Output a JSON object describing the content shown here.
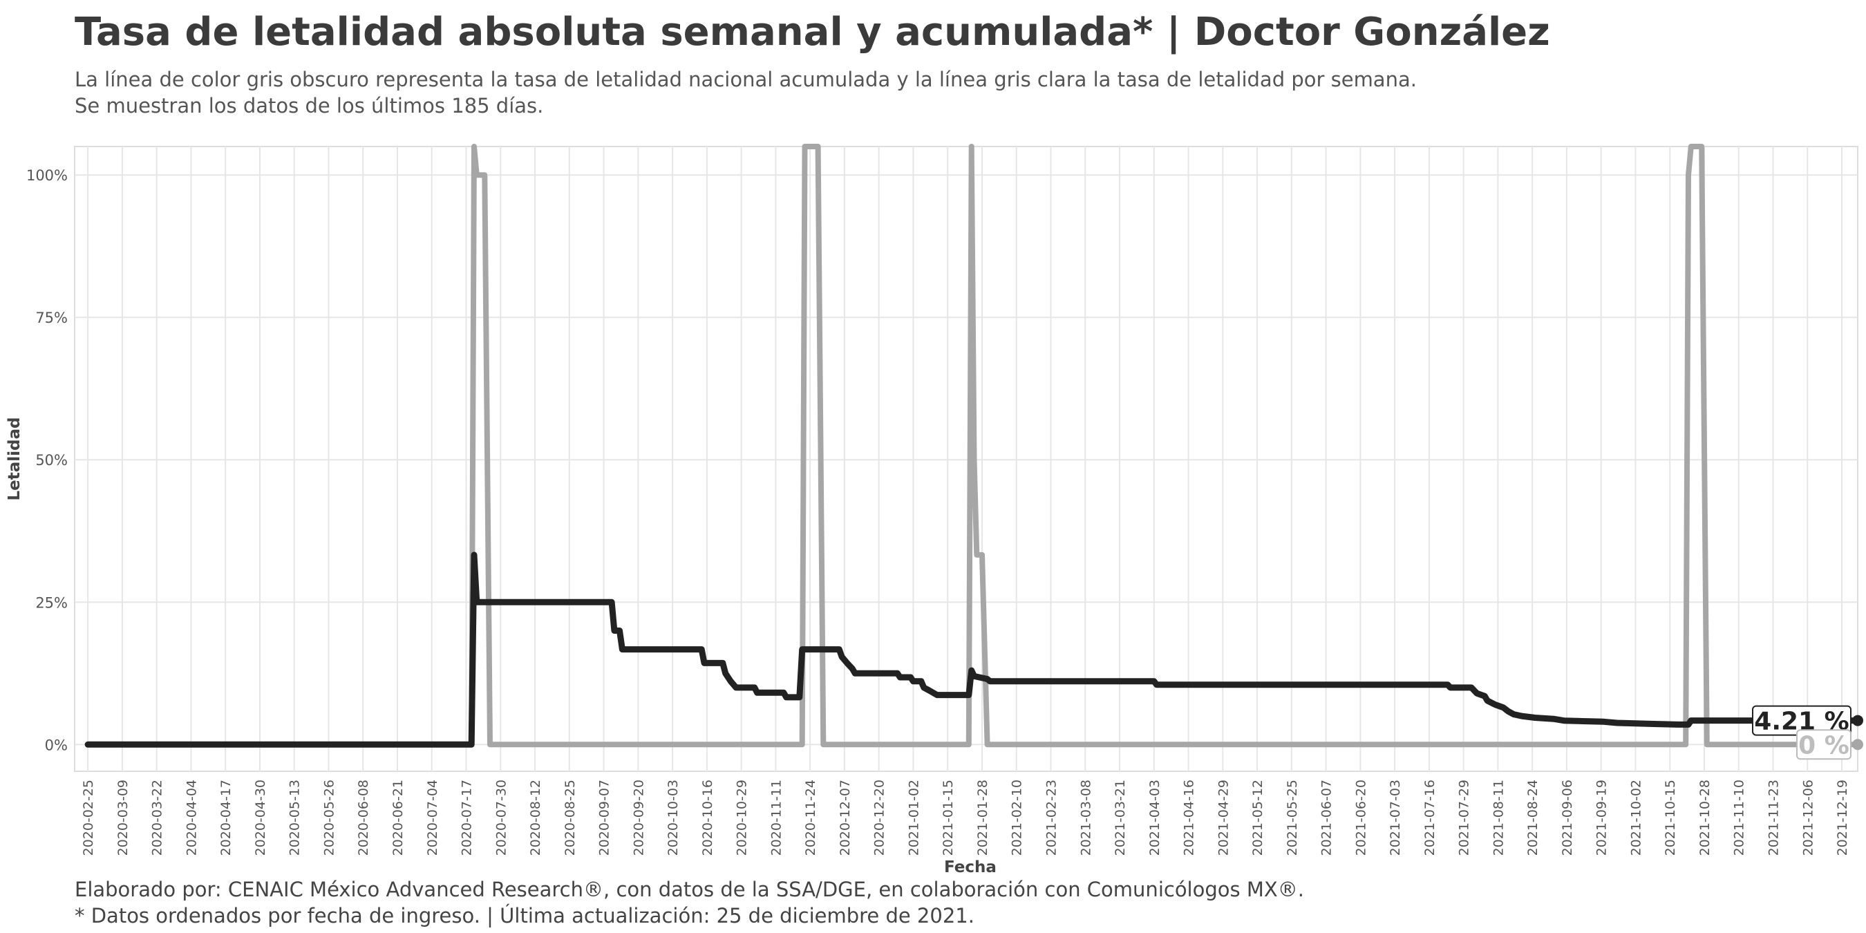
{
  "title": "Tasa de letalidad absoluta semanal y acumulada* | Doctor González",
  "subtitle": [
    "La línea de color gris obscuro representa la tasa de letalidad nacional acumulada y la línea gris clara la tasa de letalidad por semana.",
    "Se muestran los datos de los últimos 185 días."
  ],
  "caption": [
    "Elaborado por: CENAIC México Advanced Research®, con datos de la SSA/DGE, en colaboración con Comunicólogos MX®.",
    "* Datos ordenados por fecha de ingreso. | Última actualización: 25 de diciembre de 2021."
  ],
  "colors": {
    "acumulada": "#222222",
    "semanal": "#a6a6a6",
    "grid": "#e6e6e6",
    "panel_border": "#dddddd",
    "tick_text": "#555555"
  },
  "chart_data": {
    "type": "line",
    "xlabel": "Fecha",
    "ylabel": "Letalidad",
    "x_range": [
      "2020-02-20",
      "2021-12-25"
    ],
    "ylim": [
      -0.047,
      1.05
    ],
    "y_ticks": [
      0,
      0.25,
      0.5,
      0.75,
      1.0
    ],
    "y_tick_labels": [
      "0%",
      "25%",
      "50%",
      "75%",
      "100%"
    ],
    "grid": true,
    "x_ticks": [
      "2020-02-25",
      "2020-03-09",
      "2020-03-22",
      "2020-04-04",
      "2020-04-17",
      "2020-04-30",
      "2020-05-13",
      "2020-05-26",
      "2020-06-08",
      "2020-06-21",
      "2020-07-04",
      "2020-07-17",
      "2020-07-30",
      "2020-08-12",
      "2020-08-25",
      "2020-09-07",
      "2020-09-20",
      "2020-10-03",
      "2020-10-16",
      "2020-10-29",
      "2020-11-11",
      "2020-11-24",
      "2020-12-07",
      "2020-12-20",
      "2021-01-02",
      "2021-01-15",
      "2021-01-28",
      "2021-02-10",
      "2021-02-23",
      "2021-03-08",
      "2021-03-21",
      "2021-04-03",
      "2021-04-16",
      "2021-04-29",
      "2021-05-12",
      "2021-05-25",
      "2021-06-07",
      "2021-06-20",
      "2021-07-03",
      "2021-07-16",
      "2021-07-29",
      "2021-08-11",
      "2021-08-24",
      "2021-09-06",
      "2021-09-19",
      "2021-10-02",
      "2021-10-15",
      "2021-10-28",
      "2021-11-10",
      "2021-11-23",
      "2021-12-06",
      "2021-12-19"
    ],
    "series": [
      {
        "key": "acumulada",
        "points": [
          [
            "2020-02-25",
            0
          ],
          [
            "2020-07-19",
            0
          ],
          [
            "2020-07-20",
            0.333
          ],
          [
            "2020-07-21",
            0.25
          ],
          [
            "2020-09-10",
            0.25
          ],
          [
            "2020-09-11",
            0.2
          ],
          [
            "2020-09-13",
            0.2
          ],
          [
            "2020-09-14",
            0.167
          ],
          [
            "2020-10-14",
            0.167
          ],
          [
            "2020-10-15",
            0.143
          ],
          [
            "2020-10-22",
            0.143
          ],
          [
            "2020-10-23",
            0.125
          ],
          [
            "2020-10-25",
            0.111
          ],
          [
            "2020-10-27",
            0.1
          ],
          [
            "2020-11-03",
            0.1
          ],
          [
            "2020-11-04",
            0.091
          ],
          [
            "2020-11-14",
            0.091
          ],
          [
            "2020-11-15",
            0.083
          ],
          [
            "2020-11-20",
            0.083
          ],
          [
            "2020-11-21",
            0.167
          ],
          [
            "2020-12-05",
            0.167
          ],
          [
            "2020-12-06",
            0.154
          ],
          [
            "2020-12-08",
            0.143
          ],
          [
            "2020-12-10",
            0.133
          ],
          [
            "2020-12-11",
            0.125
          ],
          [
            "2020-12-27",
            0.125
          ],
          [
            "2020-12-28",
            0.118
          ],
          [
            "2021-01-01",
            0.118
          ],
          [
            "2021-01-02",
            0.111
          ],
          [
            "2021-01-05",
            0.111
          ],
          [
            "2021-01-06",
            0.1
          ],
          [
            "2021-01-08",
            0.095
          ],
          [
            "2021-01-11",
            0.087
          ],
          [
            "2021-01-23",
            0.087
          ],
          [
            "2021-01-24",
            0.13
          ],
          [
            "2021-01-25",
            0.12
          ],
          [
            "2021-01-30",
            0.115
          ],
          [
            "2021-01-31",
            0.111
          ],
          [
            "2021-04-03",
            0.111
          ],
          [
            "2021-04-04",
            0.105
          ],
          [
            "2021-07-23",
            0.105
          ],
          [
            "2021-07-24",
            0.1
          ],
          [
            "2021-08-01",
            0.1
          ],
          [
            "2021-08-03",
            0.09
          ],
          [
            "2021-08-06",
            0.085
          ],
          [
            "2021-08-07",
            0.077
          ],
          [
            "2021-08-10",
            0.07
          ],
          [
            "2021-08-13",
            0.065
          ],
          [
            "2021-08-15",
            0.058
          ],
          [
            "2021-08-17",
            0.053
          ],
          [
            "2021-08-20",
            0.05
          ],
          [
            "2021-08-25",
            0.047
          ],
          [
            "2021-09-01",
            0.045
          ],
          [
            "2021-09-05",
            0.042
          ],
          [
            "2021-09-12",
            0.041
          ],
          [
            "2021-09-20",
            0.04
          ],
          [
            "2021-09-25",
            0.038
          ],
          [
            "2021-10-02",
            0.037
          ],
          [
            "2021-10-10",
            0.036
          ],
          [
            "2021-10-18",
            0.035
          ],
          [
            "2021-10-22",
            0.035
          ],
          [
            "2021-10-23",
            0.0421
          ],
          [
            "2021-12-25",
            0.0421
          ]
        ]
      },
      {
        "key": "semanal",
        "points": [
          [
            "2020-07-17",
            0
          ],
          [
            "2020-07-19",
            0
          ],
          [
            "2020-07-20",
            1.05
          ],
          [
            "2020-07-21",
            1.0
          ],
          [
            "2020-07-24",
            1.0
          ],
          [
            "2020-07-26",
            0
          ],
          [
            "2020-11-21",
            0
          ],
          [
            "2020-11-22",
            1.05
          ],
          [
            "2020-11-27",
            1.05
          ],
          [
            "2020-11-29",
            0
          ],
          [
            "2021-01-23",
            0
          ],
          [
            "2021-01-24",
            1.05
          ],
          [
            "2021-01-25",
            0.5
          ],
          [
            "2021-01-26",
            0.333
          ],
          [
            "2021-01-28",
            0.333
          ],
          [
            "2021-01-30",
            0
          ],
          [
            "2021-10-21",
            0
          ],
          [
            "2021-10-22",
            1.0
          ],
          [
            "2021-10-23",
            1.05
          ],
          [
            "2021-10-27",
            1.05
          ],
          [
            "2021-10-29",
            0
          ],
          [
            "2021-12-25",
            0
          ]
        ]
      }
    ],
    "end_labels": [
      {
        "series": "acumulada",
        "text": "4.21 %",
        "value": 0.0421
      },
      {
        "series": "semanal",
        "text": "0 %",
        "value": 0
      }
    ]
  }
}
